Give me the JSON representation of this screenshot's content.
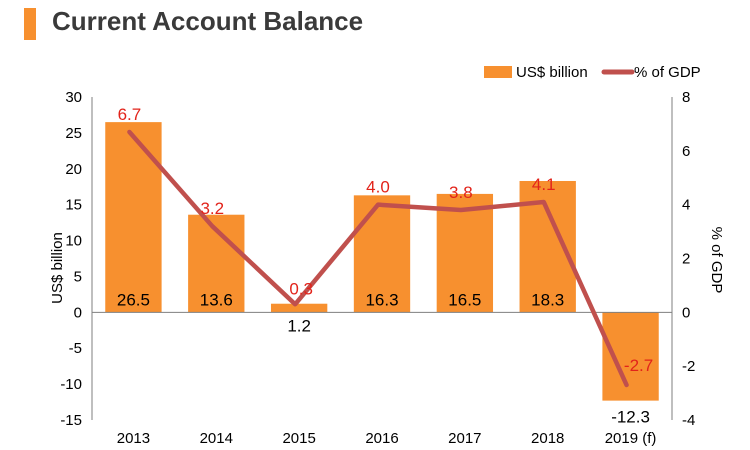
{
  "header": {
    "title": "Current Account Balance"
  },
  "colors": {
    "accent": "#F7902F",
    "bar": "#F7902F",
    "line": "#C0504D",
    "line_label": "#E2231A",
    "axis": "#7f7f7f",
    "text": "#000000"
  },
  "chart_data": {
    "type": "bar",
    "title": "Current Account Balance",
    "categories": [
      "2013",
      "2014",
      "2015",
      "2016",
      "2017",
      "2018",
      "2019 (f)"
    ],
    "series": [
      {
        "name": "US$ billion",
        "type": "bar",
        "axis": "left",
        "values": [
          26.5,
          13.6,
          1.2,
          16.3,
          16.5,
          18.3,
          -12.3
        ],
        "labels": [
          "26.5",
          "13.6",
          "1.2",
          "16.3",
          "16.5",
          "18.3",
          "-12.3"
        ]
      },
      {
        "name": "% of GDP",
        "type": "line",
        "axis": "right",
        "values": [
          6.7,
          3.2,
          0.3,
          4.0,
          3.8,
          4.1,
          -2.7
        ],
        "labels": [
          "6.7",
          "3.2",
          "0.3",
          "4.0",
          "3.8",
          "4.1",
          "-2.7"
        ]
      }
    ],
    "ylabel": "US$ billion",
    "y2label": "% of GDP",
    "ylim": [
      -15,
      30
    ],
    "y2lim": [
      -4,
      8
    ],
    "yticks": [
      "30",
      "25",
      "20",
      "15",
      "10",
      "5",
      "0",
      "-5",
      "-10",
      "-15"
    ],
    "y2ticks": [
      "8",
      "6",
      "4",
      "2",
      "0",
      "-2",
      "-4"
    ],
    "legend": "top-right"
  }
}
